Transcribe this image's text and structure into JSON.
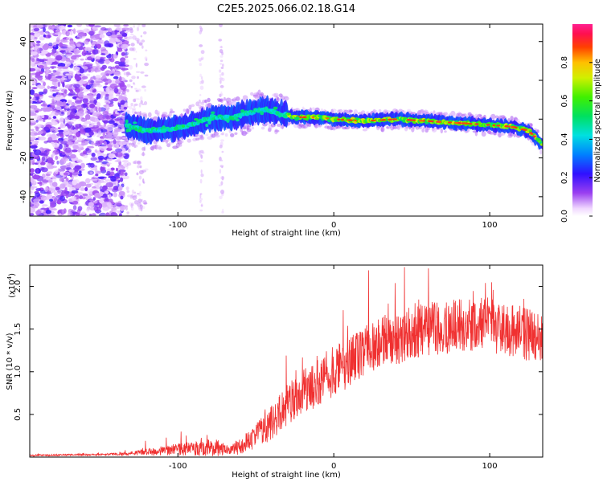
{
  "title": "C2E5.2025.066.02.18.G14",
  "chart_data": [
    {
      "type": "heatmap",
      "xlabel": "Height of straight line (km)",
      "ylabel": "Frequency (Hz)",
      "xlim": [
        -195,
        134
      ],
      "ylim": [
        -50,
        49
      ],
      "x_ticks": [
        -100,
        0,
        100
      ],
      "y_ticks": [
        -40,
        -20,
        0,
        20,
        40
      ],
      "colorbar": {
        "label": "Normalized spectral amplitude",
        "range": [
          0,
          1
        ],
        "ticks": [
          "0.0",
          "0.2",
          "0.4",
          "0.6",
          "0.8"
        ],
        "tick_values": [
          0,
          0.2,
          0.4,
          0.6,
          0.8
        ]
      },
      "noise_region_x": [
        -195,
        -133
      ],
      "sparse_noise_region_x": [
        -133,
        -120
      ],
      "ridge_start_x": -133,
      "ridge_center_hz": [
        {
          "x": -133,
          "y": -3
        },
        {
          "x": -120,
          "y": -6
        },
        {
          "x": -105,
          "y": -5
        },
        {
          "x": -95,
          "y": -4
        },
        {
          "x": -85,
          "y": -1
        },
        {
          "x": -75,
          "y": 1
        },
        {
          "x": -65,
          "y": 1
        },
        {
          "x": -55,
          "y": 3
        },
        {
          "x": -45,
          "y": 5
        },
        {
          "x": -35,
          "y": 3
        },
        {
          "x": -25,
          "y": 1
        },
        {
          "x": -10,
          "y": 1
        },
        {
          "x": 0,
          "y": 0
        },
        {
          "x": 20,
          "y": -1
        },
        {
          "x": 40,
          "y": 0
        },
        {
          "x": 60,
          "y": -1
        },
        {
          "x": 80,
          "y": -2
        },
        {
          "x": 100,
          "y": -3
        },
        {
          "x": 115,
          "y": -4
        },
        {
          "x": 125,
          "y": -6
        },
        {
          "x": 134,
          "y": -13
        }
      ]
    },
    {
      "type": "line",
      "xlabel": "Height of straight line (km)",
      "ylabel": "SNR (10 * v/v)",
      "y_multiplier": "(x10",
      "y_multiplier_exp": "4",
      "y_multiplier_close": ")",
      "xlim": [
        -195,
        134
      ],
      "ylim": [
        0,
        2.25
      ],
      "x_ticks": [
        -100,
        0,
        100
      ],
      "y_ticks": [
        0.5,
        1.0,
        1.5,
        2.0
      ],
      "y_tick_labels": [
        "0.5",
        "1.0",
        "1.5",
        "2.0"
      ],
      "color": "#f03030",
      "envelope": {
        "x": [
          -195,
          -150,
          -130,
          -120,
          -100,
          -85,
          -75,
          -68,
          -60,
          -50,
          -40,
          -30,
          -20,
          -10,
          0,
          10,
          20,
          30,
          40,
          60,
          80,
          100,
          120,
          134
        ],
        "mean": [
          0.02,
          0.03,
          0.04,
          0.06,
          0.09,
          0.1,
          0.11,
          0.08,
          0.12,
          0.25,
          0.4,
          0.6,
          0.75,
          0.9,
          1.0,
          1.1,
          1.25,
          1.35,
          1.4,
          1.5,
          1.55,
          1.55,
          1.45,
          1.35
        ],
        "noise": [
          0.01,
          0.01,
          0.02,
          0.04,
          0.07,
          0.09,
          0.1,
          0.06,
          0.1,
          0.15,
          0.2,
          0.25,
          0.28,
          0.3,
          0.3,
          0.3,
          0.3,
          0.3,
          0.32,
          0.32,
          0.32,
          0.32,
          0.32,
          0.32
        ]
      }
    }
  ]
}
